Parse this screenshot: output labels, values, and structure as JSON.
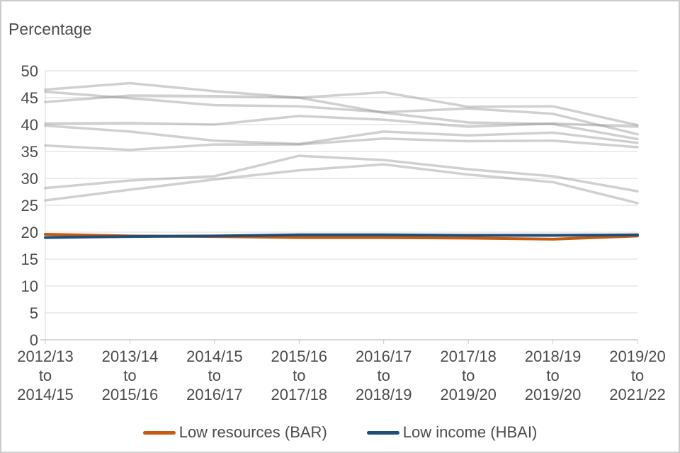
{
  "chart": {
    "title": "Percentage",
    "legend": [
      {
        "label": "Low resources (BAR)",
        "color": "#C55A11"
      },
      {
        "label": "Low income (HBAI)",
        "color": "#1F4E79"
      }
    ]
  },
  "chart_data": {
    "type": "line",
    "title": "",
    "xlabel": "",
    "ylabel": "Percentage",
    "ylim": [
      0,
      50
    ],
    "y_tick_step": 5,
    "grid": true,
    "legend_position": "bottom",
    "categories": [
      "2012/13 to 2014/15",
      "2013/14 to 2015/16",
      "2014/15 to 2016/17",
      "2015/16 to 2017/18",
      "2016/17 to 2018/19",
      "2017/18 to 2019/20",
      "2018/19 to 2019/20",
      "2019/20 to 2021/22"
    ],
    "series": [
      {
        "name": "Low resources (BAR)",
        "color": "#C55A11",
        "emphasis": true,
        "values": [
          19.6,
          19.3,
          19.2,
          19.0,
          19.0,
          18.9,
          18.7,
          19.3
        ]
      },
      {
        "name": "Low income (HBAI)",
        "color": "#1F4E79",
        "emphasis": true,
        "values": [
          19.0,
          19.2,
          19.3,
          19.5,
          19.5,
          19.4,
          19.4,
          19.5
        ]
      }
    ],
    "unlabeled_background_series": [
      [
        46.5,
        47.7,
        46.2,
        45.0,
        46.0,
        43.3,
        43.4,
        39.9
      ],
      [
        46.1,
        44.9,
        43.6,
        43.4,
        42.3,
        43.0,
        42.0,
        38.2
      ],
      [
        44.2,
        45.4,
        45.3,
        45.0,
        42.2,
        40.4,
        40.1,
        37.3
      ],
      [
        40.2,
        40.3,
        40.0,
        41.6,
        40.9,
        39.6,
        40.2,
        39.6
      ],
      [
        39.8,
        38.7,
        37.0,
        36.4,
        38.7,
        38.0,
        38.5,
        36.6
      ],
      [
        36.1,
        35.3,
        36.3,
        36.3,
        37.4,
        36.9,
        37.0,
        35.8
      ],
      [
        28.2,
        29.6,
        30.4,
        34.2,
        33.4,
        31.7,
        30.4,
        27.6
      ],
      [
        25.9,
        27.9,
        29.8,
        31.5,
        32.6,
        30.7,
        29.3,
        25.4
      ]
    ],
    "background_series_color": "rgba(138,138,138,0.4)",
    "gridline_color": "#d9d9d9",
    "axis_color": "#c9c9c9",
    "text_color": "#4c4c4c"
  }
}
